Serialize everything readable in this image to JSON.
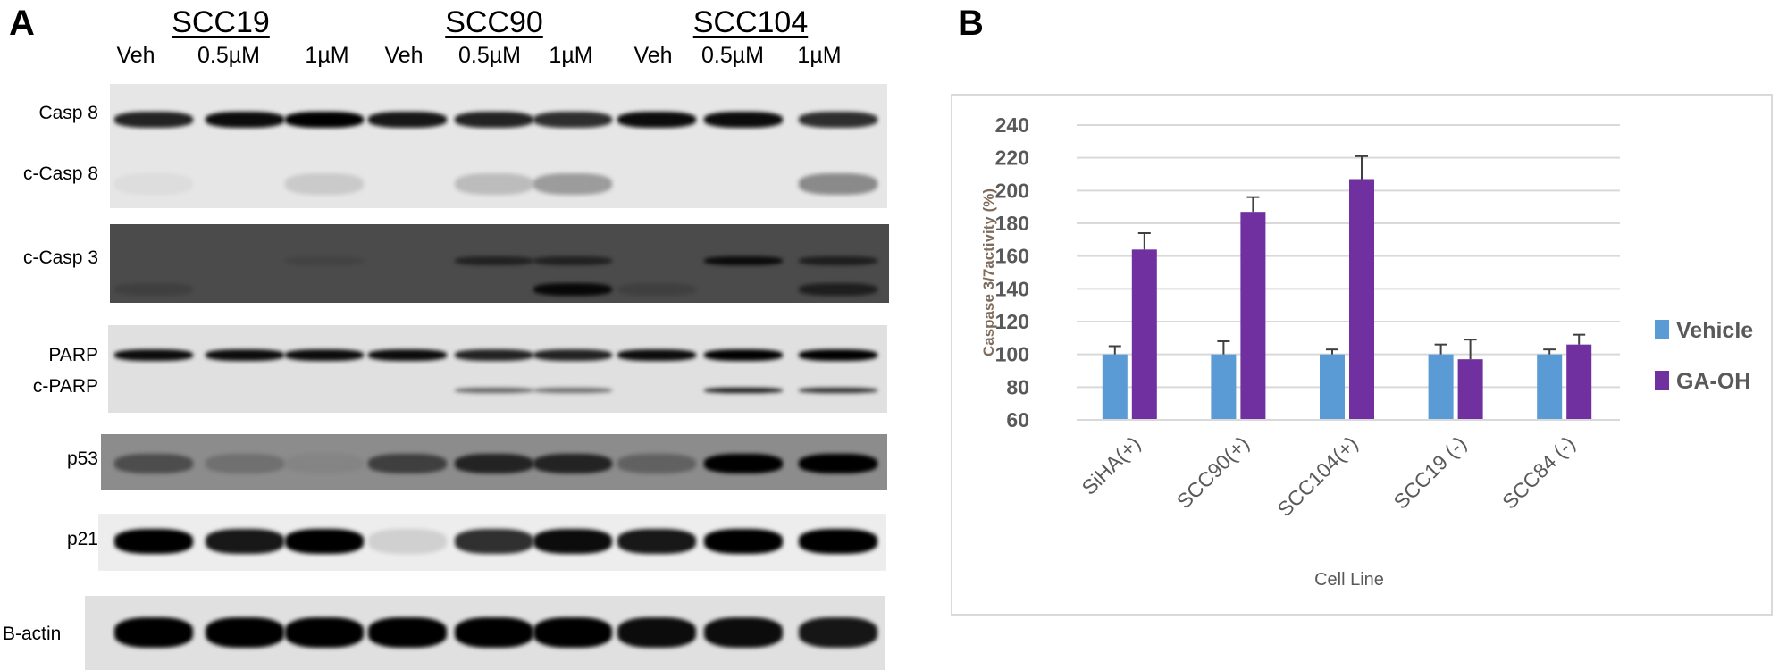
{
  "panel_a": {
    "letter": "A",
    "cell_lines": [
      "SCC19",
      "SCC90",
      "SCC104"
    ],
    "lanes": [
      "Veh",
      "0.5µM",
      "1µM",
      "Veh",
      "0.5µM",
      "1µM",
      "Veh",
      "0.5µM",
      "1µM"
    ],
    "rows": [
      "Casp 8",
      "c-Casp 8",
      "c-Casp 3",
      "PARP",
      "c-PARP",
      "p53",
      "p21",
      "B-actin"
    ]
  },
  "panel_b": {
    "letter": "B"
  },
  "chart_data": {
    "type": "bar",
    "title": "",
    "xlabel": "Cell Line",
    "ylabel": "Caspase  3/7activity  (%)",
    "categories": [
      "SiHA(+)",
      "SCC90(+)",
      "SCC104(+)",
      "SCC19 (-)",
      "SCC84 (-)"
    ],
    "ylim": [
      60,
      240
    ],
    "yticks": [
      60,
      80,
      100,
      120,
      140,
      160,
      180,
      200,
      220,
      240
    ],
    "grid": true,
    "legend_position": "right",
    "series": [
      {
        "name": "Vehicle",
        "color": "#5b9bd5",
        "values": [
          100,
          100,
          100,
          100,
          100
        ],
        "errors": [
          5,
          8,
          3,
          6,
          3
        ]
      },
      {
        "name": "GA-OH",
        "color": "#7030a0",
        "values": [
          164,
          187,
          207,
          97,
          106
        ],
        "errors": [
          10,
          9,
          14,
          12,
          6
        ]
      }
    ]
  }
}
